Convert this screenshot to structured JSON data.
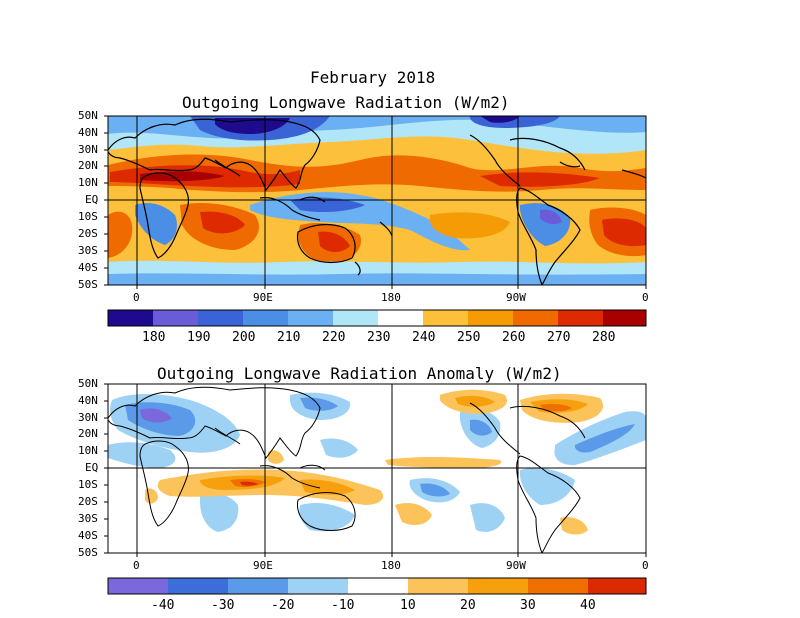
{
  "title": "February 2018",
  "panels": [
    {
      "id": "olr",
      "title": "Outgoing Longwave Radiation (W/m2)",
      "lat_labels": [
        "50N",
        "40N",
        "30N",
        "20N",
        "10N",
        "EQ",
        "10S",
        "20S",
        "30S",
        "40S",
        "50S"
      ],
      "lon_labels": [
        "0",
        "90E",
        "180",
        "90W",
        "0"
      ],
      "colorbar": {
        "labels": [
          "180",
          "190",
          "200",
          "210",
          "220",
          "230",
          "240",
          "250",
          "260",
          "270",
          "280"
        ],
        "colors": [
          "#1d0a8c",
          "#6a5bd6",
          "#3a63d6",
          "#4a8ee6",
          "#6ab0f2",
          "#b0e6f8",
          "#ffffff",
          "#fcc03a",
          "#f59b05",
          "#ef6a00",
          "#dd2a00",
          "#a80000"
        ]
      }
    },
    {
      "id": "anom",
      "title": "Outgoing Longwave Radiation Anomaly (W/m2)",
      "lat_labels": [
        "50N",
        "40N",
        "30N",
        "20N",
        "10N",
        "EQ",
        "10S",
        "20S",
        "30S",
        "40S",
        "50S"
      ],
      "lon_labels": [
        "0",
        "90E",
        "180",
        "90W",
        "0"
      ],
      "colorbar": {
        "labels": [
          "-40",
          "-30",
          "-20",
          "-10",
          "10",
          "20",
          "30",
          "40"
        ],
        "colors": [
          "#7b68dc",
          "#3b6ed8",
          "#5a9ae8",
          "#9ed2f5",
          "#ffffff",
          "#fcc35a",
          "#f7a00e",
          "#ef6f00",
          "#dc2a00"
        ]
      }
    }
  ]
}
